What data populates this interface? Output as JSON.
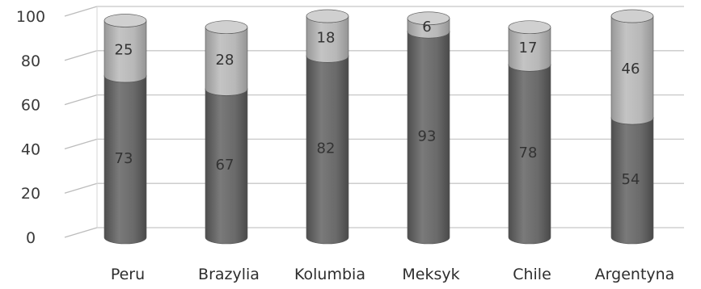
{
  "chart_data": {
    "type": "bar",
    "stacked": true,
    "style": "3d-cylinder",
    "categories": [
      "Peru",
      "Brazylia",
      "Kolumbia",
      "Meksyk",
      "Chile",
      "Argentyna"
    ],
    "series": [
      {
        "values": [
          73,
          67,
          82,
          93,
          78,
          54
        ],
        "color": "#6f6f6f"
      },
      {
        "values": [
          25,
          28,
          18,
          6,
          17,
          46
        ],
        "color": "#b4b4b4"
      }
    ],
    "yticks": [
      0,
      20,
      40,
      60,
      80,
      100
    ],
    "ylim": [
      0,
      100
    ],
    "grid": true,
    "title": "",
    "xlabel": "",
    "ylabel": ""
  }
}
